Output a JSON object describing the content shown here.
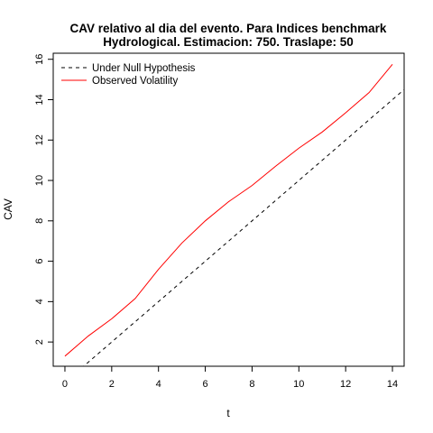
{
  "chart_data": {
    "type": "line",
    "title_line1": "CAV relativo al dia del evento. Para Indices benchmark",
    "title_line2": "Hydrological. Estimacion: 750. Traslape: 50",
    "xlabel": "t",
    "ylabel": "CAV",
    "xlim": [
      -0.5,
      14.5
    ],
    "ylim": [
      0.8,
      16.3
    ],
    "x_ticks": [
      "0",
      "2",
      "4",
      "6",
      "8",
      "10",
      "12",
      "14"
    ],
    "y_ticks": [
      "2",
      "4",
      "6",
      "8",
      "10",
      "12",
      "14",
      "16"
    ],
    "grid": false,
    "legend_position": "top-left",
    "series": [
      {
        "name": "Under Null Hypothesis",
        "color": "#000000",
        "dash": "dashed",
        "x": [
          0,
          1,
          2,
          3,
          4,
          5,
          6,
          7,
          8,
          9,
          10,
          11,
          12,
          13,
          14,
          15
        ],
        "y": [
          0,
          1,
          2,
          3,
          4,
          5,
          6,
          7,
          8,
          9,
          10,
          11,
          12,
          13,
          14,
          15
        ]
      },
      {
        "name": "Observed Volatility",
        "color": "#ff0000",
        "dash": "solid",
        "x": [
          0,
          1,
          2,
          3,
          4,
          5,
          6,
          7,
          8,
          9,
          10,
          11,
          12,
          13,
          14
        ],
        "y": [
          1.3,
          2.3,
          3.15,
          4.15,
          5.6,
          6.9,
          8.0,
          8.95,
          9.75,
          10.7,
          11.6,
          12.4,
          13.35,
          14.35,
          15.75
        ]
      }
    ]
  }
}
